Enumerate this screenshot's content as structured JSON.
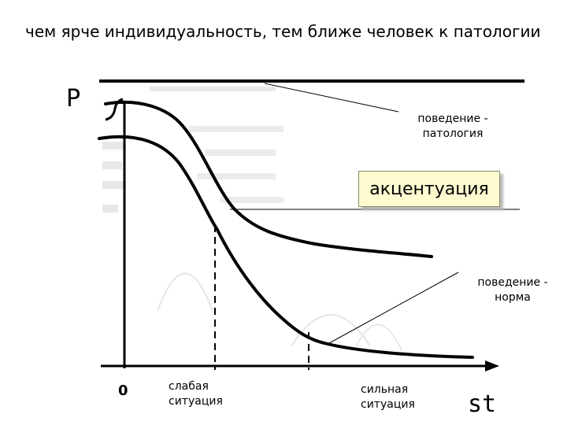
{
  "title": "чем ярче индивидуальность, тем ближе человек к патологии",
  "axes": {
    "y_letter": "Р",
    "x_letter": "st",
    "origin": "0"
  },
  "situations": {
    "weak": "слабая ситуация",
    "strong": "сильная ситуация"
  },
  "callouts": {
    "pathology": "поведение - патология",
    "accentuation": "акцентуация",
    "norm": "поведение - норма"
  },
  "colors": {
    "curve": "#000000",
    "accent_box_fill": "#fffbd1",
    "faded_background_text": "#c9c9c9"
  }
}
